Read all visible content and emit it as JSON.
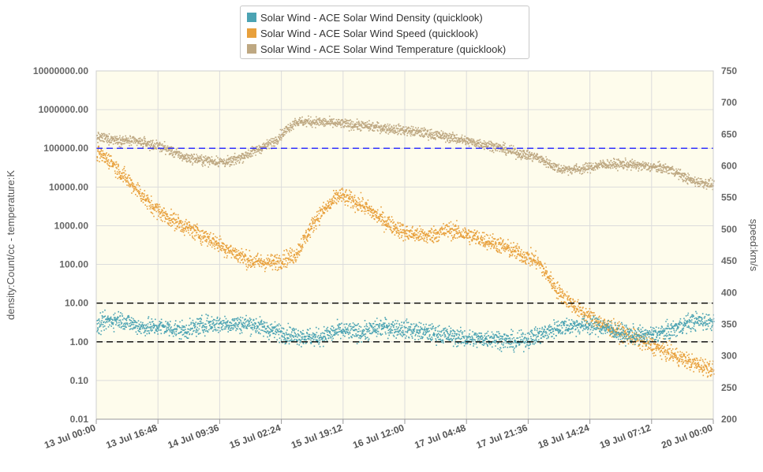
{
  "chart_data": {
    "type": "scatter",
    "legend_position": "top-center",
    "grid": true,
    "background_color": "#fefcec",
    "x_ticks": [
      "13 Jul 00:00",
      "13 Jul 16:48",
      "14 Jul 09:36",
      "15 Jul 02:24",
      "15 Jul 19:12",
      "16 Jul 12:00",
      "17 Jul 04:48",
      "17 Jul 21:36",
      "18 Jul 14:24",
      "19 Jul 07:12",
      "20 Jul 00:00"
    ],
    "xlim": [
      "13 Jul 00:00",
      "20 Jul 00:00"
    ],
    "y_left": {
      "label": "density:Count/cc - temperature:K",
      "scale": "log",
      "ticks": [
        "10000000.00",
        "1000000.00",
        "100000.00",
        "10000.00",
        "1000.00",
        "100.00",
        "10.00",
        "1.00",
        "0.10",
        "0.01"
      ],
      "ylim": [
        0.01,
        10000000
      ]
    },
    "y_right": {
      "label": "speed:km/s",
      "scale": "linear",
      "ticks": [
        "750",
        "700",
        "650",
        "600",
        "550",
        "500",
        "450",
        "400",
        "350",
        "300",
        "250",
        "200"
      ],
      "ylim": [
        200,
        750
      ]
    },
    "reference_lines": [
      {
        "axis": "left",
        "value": 100000,
        "color": "#1f1fff",
        "style": "dashed"
      },
      {
        "axis": "left",
        "value": 10,
        "color": "#000000",
        "style": "dashed"
      },
      {
        "axis": "left",
        "value": 1,
        "color": "#000000",
        "style": "dashed"
      }
    ],
    "series": [
      {
        "name": "Solar Wind - ACE Solar Wind Density (quicklook)",
        "color": "#4ba3b3",
        "axis": "left",
        "x_days": [
          0.0,
          0.1,
          0.25,
          0.5,
          0.75,
          1.0,
          1.25,
          1.5,
          1.75,
          2.0,
          2.25,
          2.5,
          2.75,
          3.0,
          3.25,
          3.5,
          3.75,
          4.0,
          4.25,
          4.5,
          4.75,
          5.0,
          5.25,
          5.5,
          5.75,
          6.0,
          6.25,
          6.5,
          6.75,
          7.0
        ],
        "values": [
          2.5,
          3.5,
          4.0,
          2.5,
          2.5,
          2.0,
          3.0,
          3.0,
          3.0,
          2.0,
          1.5,
          1.3,
          2.0,
          1.8,
          2.5,
          2.2,
          1.8,
          1.5,
          1.2,
          1.3,
          1.0,
          1.5,
          2.5,
          2.8,
          2.5,
          1.6,
          1.5,
          2.0,
          3.5,
          3.5
        ],
        "spread_decades": 0.45
      },
      {
        "name": "Solar Wind - ACE Solar Wind Speed (quicklook)",
        "color": "#e8a03c",
        "axis": "right",
        "x_days": [
          0.0,
          0.15,
          0.3,
          0.45,
          0.6,
          0.8,
          1.0,
          1.25,
          1.5,
          1.75,
          2.0,
          2.25,
          2.5,
          2.75,
          3.0,
          3.25,
          3.5,
          3.75,
          4.0,
          4.25,
          4.5,
          4.75,
          5.0,
          5.25,
          5.5,
          5.75,
          6.0,
          6.25,
          6.5,
          6.75,
          7.0
        ],
        "values": [
          620,
          610,
          585,
          565,
          540,
          520,
          505,
          488,
          468,
          450,
          448,
          460,
          520,
          555,
          540,
          515,
          495,
          490,
          500,
          490,
          480,
          465,
          450,
          400,
          370,
          350,
          335,
          320,
          305,
          290,
          280
        ],
        "spread_units": 13
      },
      {
        "name": "Solar Wind - ACE Solar Wind Temperature (quicklook)",
        "color": "#bea882",
        "axis": "left",
        "x_days": [
          0.0,
          0.25,
          0.5,
          0.75,
          1.0,
          1.25,
          1.5,
          1.75,
          2.0,
          2.25,
          2.5,
          2.75,
          3.0,
          3.25,
          3.5,
          3.75,
          4.0,
          4.25,
          4.5,
          4.75,
          5.0,
          5.25,
          5.5,
          5.75,
          6.0,
          6.25,
          6.5,
          6.75,
          7.0
        ],
        "values": [
          200000,
          170000,
          150000,
          110000,
          60000,
          50000,
          45000,
          80000,
          150000,
          500000,
          500000,
          450000,
          400000,
          350000,
          300000,
          250000,
          200000,
          150000,
          120000,
          80000,
          60000,
          30000,
          30000,
          40000,
          40000,
          35000,
          30000,
          15000,
          12000
        ],
        "spread_decades": 0.25
      }
    ]
  }
}
